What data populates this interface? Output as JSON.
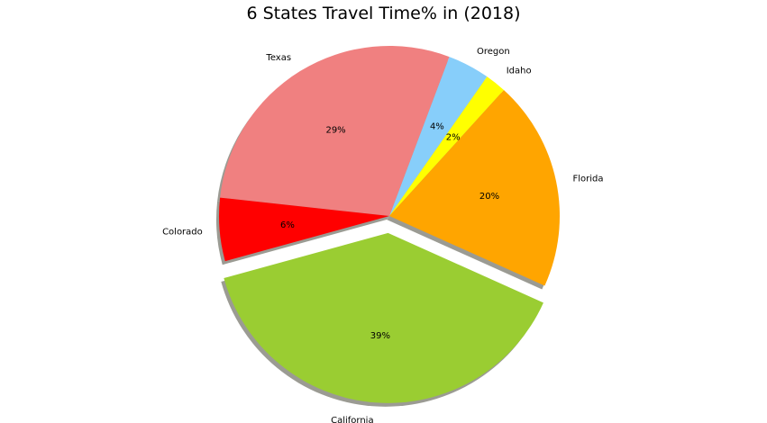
{
  "chart_data": {
    "type": "pie",
    "title": "6 States Travel Time% in (2018)",
    "autopct_format": "%",
    "shadow": true,
    "slices": [
      {
        "label": "Oregon",
        "value": 4,
        "pct_label": "4%",
        "color": "#87CEFA",
        "explode": 0
      },
      {
        "label": "Texas",
        "value": 29,
        "pct_label": "29%",
        "color": "#F08080",
        "explode": 0
      },
      {
        "label": "Colorado",
        "value": 6,
        "pct_label": "6%",
        "color": "#FF0000",
        "explode": 0
      },
      {
        "label": "California",
        "value": 39,
        "pct_label": "39%",
        "color": "#9ACD32",
        "explode": 0.1
      },
      {
        "label": "Florida",
        "value": 20,
        "pct_label": "20%",
        "color": "#FFA500",
        "explode": 0
      },
      {
        "label": "Idaho",
        "value": 2,
        "pct_label": "2%",
        "color": "#FFFF00",
        "explode": 0
      }
    ]
  }
}
